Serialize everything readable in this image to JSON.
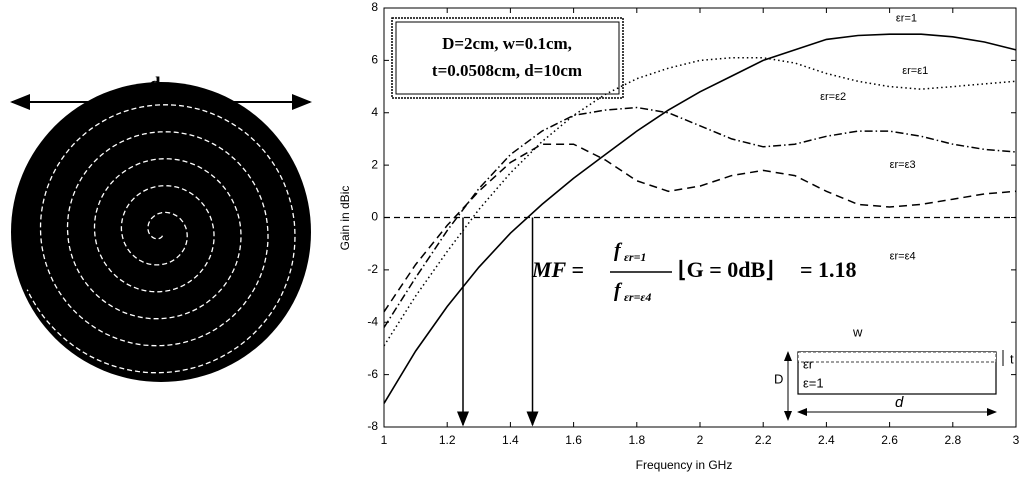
{
  "chart_data": {
    "type": "line",
    "x_label": "Frequency in GHz",
    "y_label": "Gain in dBic",
    "x": [
      1,
      1.1,
      1.2,
      1.3,
      1.4,
      1.5,
      1.6,
      1.7,
      1.8,
      1.9,
      2,
      2.1,
      2.2,
      2.3,
      2.4,
      2.5,
      2.6,
      2.7,
      2.8,
      2.9,
      3
    ],
    "xlim": [
      1,
      3
    ],
    "ylim": [
      -8,
      8
    ],
    "xticks": [
      1,
      1.2,
      1.4,
      1.6,
      1.8,
      2,
      2.2,
      2.4,
      2.6,
      2.8,
      3
    ],
    "yticks": [
      -8,
      -6,
      -4,
      -2,
      0,
      2,
      4,
      6,
      8
    ],
    "series": [
      {
        "name": "εr=1",
        "color": "#000000",
        "dash": "solid",
        "values": [
          -7.1,
          -5.1,
          -3.4,
          -1.9,
          -0.6,
          0.5,
          1.5,
          2.4,
          3.3,
          4.1,
          4.8,
          5.4,
          6.0,
          6.4,
          6.8,
          6.95,
          7.0,
          7.0,
          6.9,
          6.7,
          6.4
        ]
      },
      {
        "name": "εr=ε1",
        "color": "#000000",
        "dash": "dotted",
        "values": [
          -4.9,
          -3.0,
          -1.3,
          0.3,
          1.7,
          2.9,
          3.9,
          4.7,
          5.3,
          5.7,
          6.0,
          6.1,
          6.1,
          5.9,
          5.5,
          5.2,
          5.0,
          4.9,
          5.0,
          5.1,
          5.2
        ]
      },
      {
        "name": "εr=ε3",
        "color": "#000000",
        "dash": "dashdot",
        "values": [
          -4.2,
          -2.3,
          -0.5,
          1.1,
          2.4,
          3.3,
          3.9,
          4.1,
          4.2,
          4.0,
          3.5,
          3.0,
          2.7,
          2.8,
          3.1,
          3.3,
          3.3,
          3.1,
          2.8,
          2.6,
          2.5
        ]
      },
      {
        "name": "εr=ε4",
        "color": "#000000",
        "dash": "dashed",
        "values": [
          -3.6,
          -1.8,
          -0.3,
          1.0,
          2.1,
          2.8,
          2.8,
          2.2,
          1.4,
          1.0,
          1.2,
          1.6,
          1.8,
          1.6,
          1.0,
          0.5,
          0.4,
          0.5,
          0.7,
          0.9,
          1.0
        ]
      }
    ],
    "curve_annotation": "εr=ε2",
    "reference_y": 0,
    "arrows_x": [
      1.25,
      1.47
    ],
    "parameters": [
      "D=2cm, w=0.1cm,",
      "t=0.0508cm, d=10cm"
    ],
    "formula": {
      "lhs": "MF =",
      "numerator": "f",
      "numerator_sub": "εr=1",
      "denominator": "f",
      "denominator_sub": "εr=ε4",
      "condition": "⌊G = 0dB⌋",
      "result": "= 1.18"
    },
    "inset": {
      "w": "w",
      "t": "t",
      "D": "D",
      "substrate": "εr",
      "air": "ε=1",
      "d": "d"
    }
  },
  "antenna": {
    "d": "d"
  }
}
